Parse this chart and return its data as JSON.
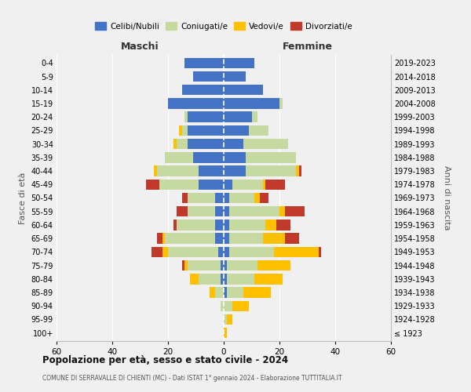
{
  "age_groups": [
    "100+",
    "95-99",
    "90-94",
    "85-89",
    "80-84",
    "75-79",
    "70-74",
    "65-69",
    "60-64",
    "55-59",
    "50-54",
    "45-49",
    "40-44",
    "35-39",
    "30-34",
    "25-29",
    "20-24",
    "15-19",
    "10-14",
    "5-9",
    "0-4"
  ],
  "birth_years": [
    "≤ 1923",
    "1924-1928",
    "1929-1933",
    "1934-1938",
    "1939-1943",
    "1944-1948",
    "1949-1953",
    "1954-1958",
    "1959-1963",
    "1964-1968",
    "1969-1973",
    "1974-1978",
    "1979-1983",
    "1984-1988",
    "1989-1993",
    "1994-1998",
    "1999-2003",
    "2004-2008",
    "2009-2013",
    "2014-2018",
    "2019-2023"
  ],
  "males": {
    "celibi": [
      0,
      0,
      0,
      0,
      1,
      1,
      2,
      3,
      3,
      3,
      3,
      9,
      9,
      11,
      13,
      13,
      13,
      20,
      15,
      11,
      14
    ],
    "coniugati": [
      0,
      0,
      1,
      3,
      8,
      12,
      18,
      18,
      14,
      10,
      10,
      14,
      15,
      10,
      4,
      2,
      1,
      0,
      0,
      0,
      0
    ],
    "vedovi": [
      0,
      0,
      0,
      2,
      3,
      1,
      2,
      1,
      0,
      0,
      0,
      0,
      1,
      0,
      1,
      1,
      0,
      0,
      0,
      0,
      0
    ],
    "divorziati": [
      0,
      0,
      0,
      0,
      0,
      1,
      4,
      2,
      1,
      4,
      2,
      5,
      0,
      0,
      0,
      0,
      0,
      0,
      0,
      0,
      0
    ]
  },
  "females": {
    "nubili": [
      0,
      0,
      0,
      1,
      1,
      1,
      2,
      2,
      2,
      2,
      2,
      3,
      8,
      8,
      7,
      9,
      10,
      20,
      14,
      8,
      11
    ],
    "coniugate": [
      0,
      1,
      3,
      6,
      10,
      11,
      16,
      12,
      13,
      18,
      9,
      11,
      18,
      18,
      16,
      7,
      2,
      1,
      0,
      0,
      0
    ],
    "vedove": [
      1,
      2,
      6,
      10,
      10,
      12,
      16,
      8,
      4,
      2,
      2,
      1,
      1,
      0,
      0,
      0,
      0,
      0,
      0,
      0,
      0
    ],
    "divorziate": [
      0,
      0,
      0,
      0,
      0,
      0,
      1,
      5,
      5,
      7,
      3,
      7,
      1,
      0,
      0,
      0,
      0,
      0,
      0,
      0,
      0
    ]
  },
  "colors": {
    "celibi": "#4472c4",
    "coniugati": "#c5d9a0",
    "vedovi": "#ffc000",
    "divorziati": "#c0392b"
  },
  "xlim": 60,
  "title": "Popolazione per età, sesso e stato civile - 2024",
  "subtitle": "COMUNE DI SERRAVALLE DI CHIENTI (MC) - Dati ISTAT 1° gennaio 2024 - Elaborazione TUTTITALIA.IT",
  "ylabel_left": "Fasce di età",
  "ylabel_right": "Anni di nascita",
  "xlabel_left": "Maschi",
  "xlabel_right": "Femmine",
  "legend_labels": [
    "Celibi/Nubili",
    "Coniugati/e",
    "Vedovi/e",
    "Divorziati/e"
  ],
  "background_color": "#f0f0f0"
}
